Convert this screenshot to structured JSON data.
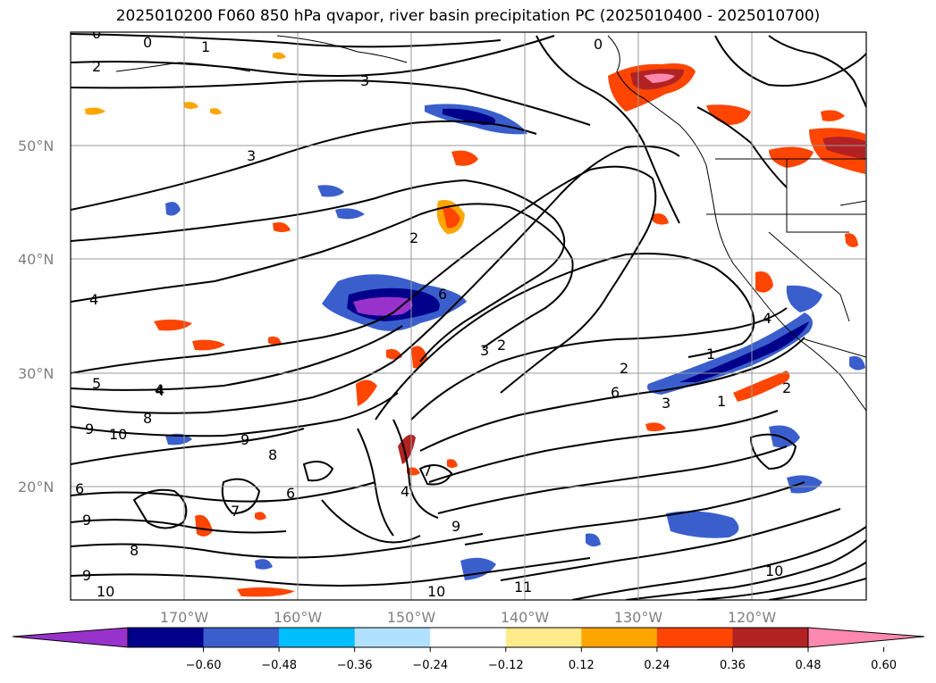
{
  "title": "2025010200 F060 850 hPa qvapor, river basin precipitation PC (2025010400 - 2025010700)",
  "lat_labels": [
    "50°N",
    "40°N",
    "30°N",
    "20°N"
  ],
  "lon_labels": [
    "170°W",
    "160°W",
    "150°W",
    "140°W",
    "130°W",
    "120°W"
  ],
  "colorbar": {
    "colors": [
      "#9932cc",
      "#00008b",
      "#3a5fcd",
      "#00bfff",
      "#b0e2ff",
      "#ffffff",
      "#ffeb8a",
      "#ffa500",
      "#ff4500",
      "#b22222",
      "#ff88b0"
    ],
    "tick_labels": [
      "−0.60",
      "−0.48",
      "−0.36",
      "−0.24",
      "−0.12",
      "0.12",
      "0.24",
      "0.36",
      "0.48",
      "0.60"
    ]
  },
  "contour_labels": [
    "0",
    "1",
    "2",
    "3",
    "3",
    "2",
    "4",
    "5",
    "4",
    "8",
    "9",
    "10",
    "9",
    "8",
    "6",
    "6",
    "7",
    "9",
    "8",
    "9",
    "10",
    "11",
    "10",
    "9",
    "2",
    "3",
    "6",
    "1",
    "2",
    "1",
    "3",
    "4",
    "6",
    "4",
    "2",
    "7",
    "4",
    "0",
    "0",
    "10"
  ]
}
